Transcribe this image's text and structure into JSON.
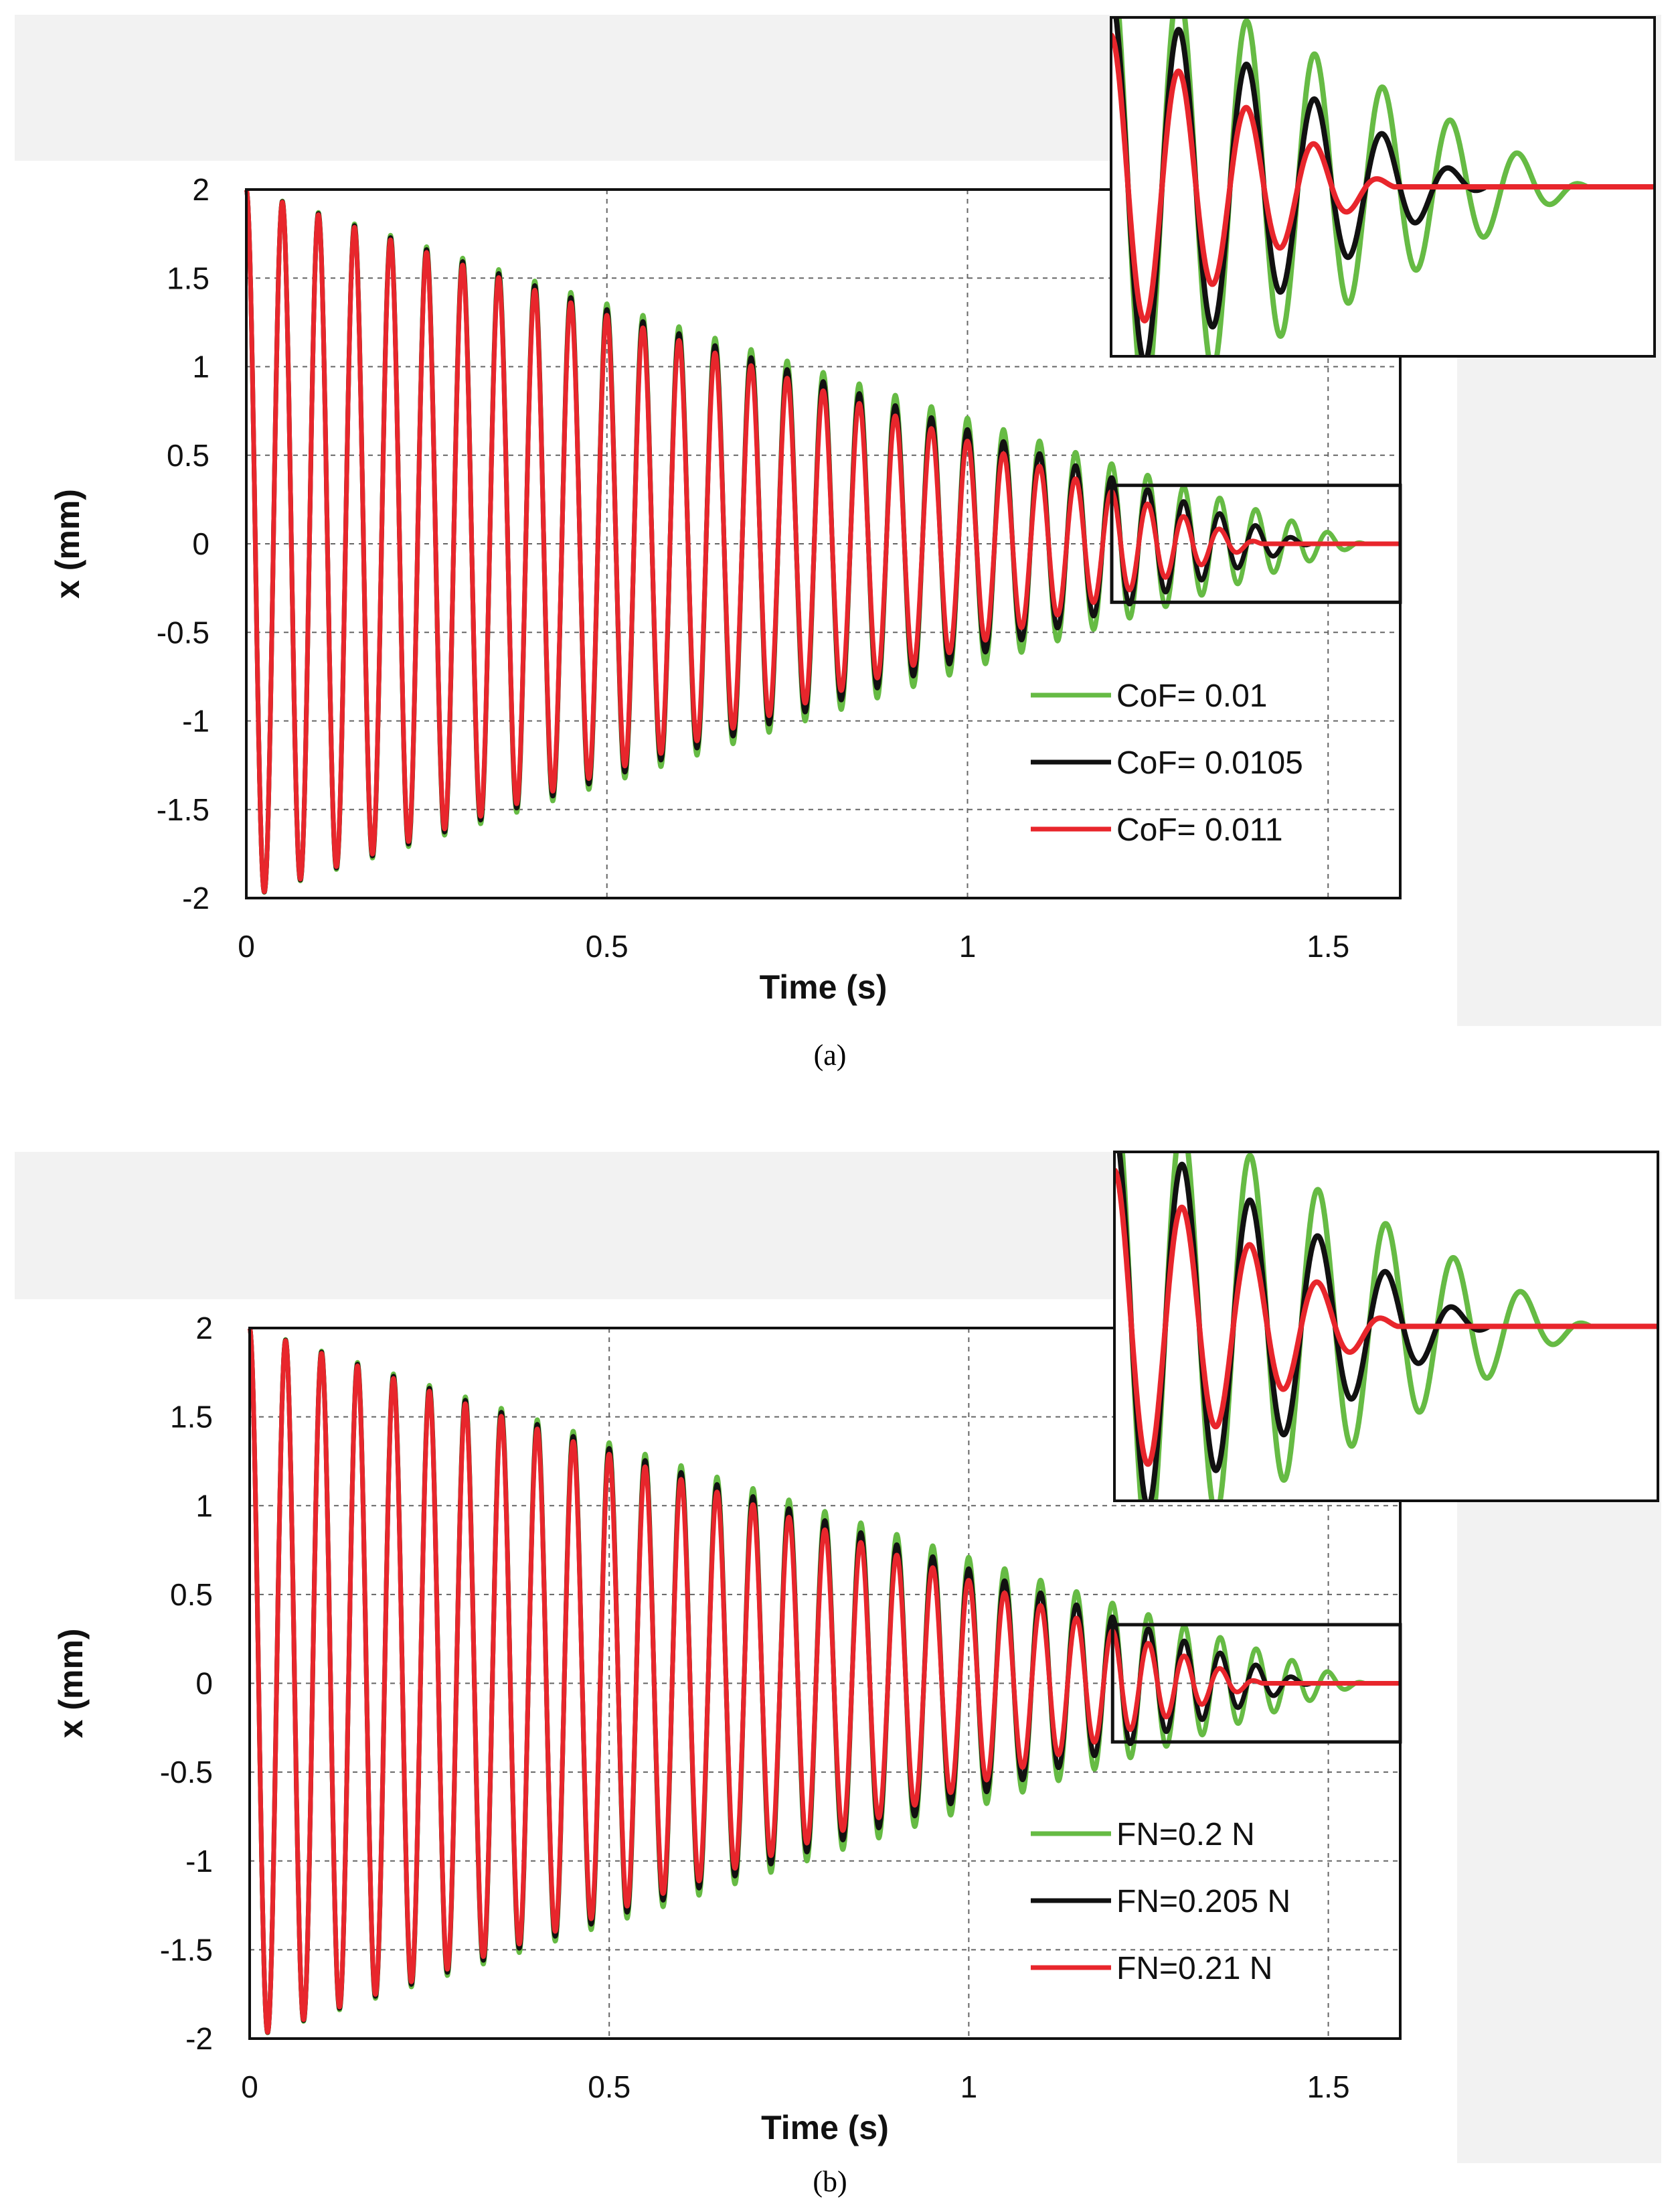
{
  "chart_data": [
    {
      "type": "line",
      "panel_label": "(a)",
      "xlabel": "Time (s)",
      "ylabel": "x (mm)",
      "xlim": [
        0,
        1.6
      ],
      "ylim": [
        -2,
        2
      ],
      "x_ticks": [
        "0",
        "0.5",
        "1",
        "1.5"
      ],
      "y_ticks": [
        "2",
        "1.5",
        "1",
        "0.5",
        "0",
        "-0.5",
        "-1",
        "-1.5",
        "-2"
      ],
      "grid": true,
      "legend_position": "bottom-right",
      "zoom_window": {
        "x": [
          1.2,
          1.6
        ],
        "y": [
          -0.33,
          0.33
        ]
      },
      "signal": {
        "initial_amplitude_mm": 2.0,
        "period_s": 0.05
      },
      "series": [
        {
          "name": "CoF= 0.01",
          "color": "#66bb44",
          "amplitude_decay_mm_per_s": 1.29,
          "stop_time_s": 1.55
        },
        {
          "name": "CoF= 0.0105",
          "color": "#111111",
          "amplitude_decay_mm_per_s": 1.355,
          "stop_time_s": 1.475
        },
        {
          "name": "CoF= 0.011",
          "color": "#e8262c",
          "amplitude_decay_mm_per_s": 1.42,
          "stop_time_s": 1.41
        }
      ]
    },
    {
      "type": "line",
      "panel_label": "(b)",
      "xlabel": "Time (s)",
      "ylabel": "x (mm)",
      "xlim": [
        0,
        1.6
      ],
      "ylim": [
        -2,
        2
      ],
      "x_ticks": [
        "0",
        "0.5",
        "1",
        "1.5"
      ],
      "y_ticks": [
        "2",
        "1.5",
        "1",
        "0.5",
        "0",
        "-0.5",
        "-1",
        "-1.5",
        "-2"
      ],
      "grid": true,
      "legend_position": "bottom-right",
      "zoom_window": {
        "x": [
          1.2,
          1.6
        ],
        "y": [
          -0.33,
          0.33
        ]
      },
      "signal": {
        "initial_amplitude_mm": 2.0,
        "period_s": 0.05
      },
      "series": [
        {
          "name": "FN=0.2 N",
          "color": "#66bb44",
          "amplitude_decay_mm_per_s": 1.29,
          "stop_time_s": 1.55
        },
        {
          "name": "FN=0.205 N",
          "color": "#111111",
          "amplitude_decay_mm_per_s": 1.355,
          "stop_time_s": 1.475
        },
        {
          "name": "FN=0.21 N",
          "color": "#e8262c",
          "amplitude_decay_mm_per_s": 1.42,
          "stop_time_s": 1.41
        }
      ]
    }
  ]
}
